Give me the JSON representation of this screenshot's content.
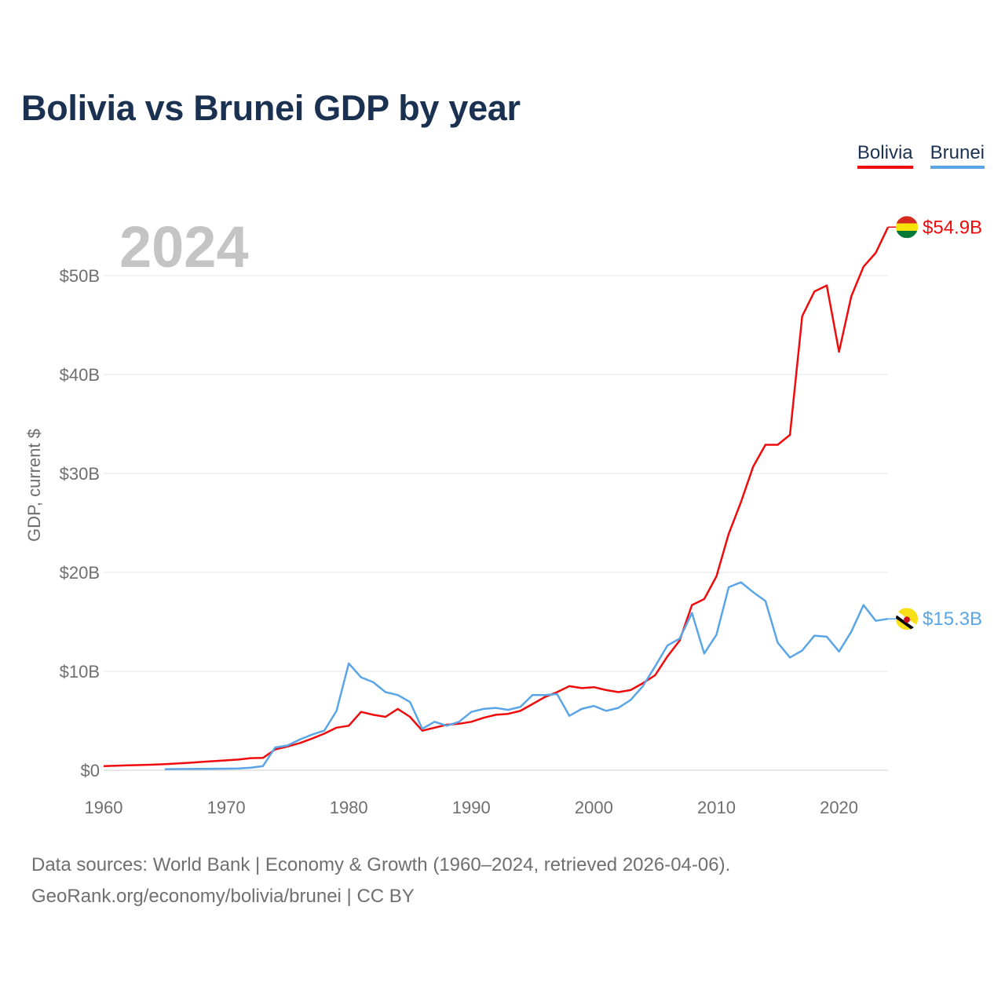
{
  "title": "Bolivia vs Brunei GDP by year",
  "legend": [
    {
      "label": "Bolivia",
      "color": "#ef0b0b"
    },
    {
      "label": "Brunei",
      "color": "#5aa5e6"
    }
  ],
  "footer": {
    "line1": "Data sources: World Bank | Economy & Growth (1960–2024, retrieved 2026-04-06).",
    "line2": "GeoRank.org/economy/bolivia/brunei | CC BY"
  },
  "chart_data": {
    "type": "line",
    "title": "Bolivia vs Brunei GDP by year",
    "year_label": "2024",
    "ylabel": "GDP, current $",
    "xlabel": "",
    "xlim": [
      1960,
      2024
    ],
    "ylim": [
      0,
      50
    ],
    "y_unit": "billions of current US$",
    "grid": true,
    "legend_position": "top-right",
    "x_ticks": [
      1960,
      1970,
      1980,
      1990,
      2000,
      2010,
      2020
    ],
    "x_tick_labels": [
      "1960",
      "1970",
      "1980",
      "1990",
      "2000",
      "2010",
      "2020"
    ],
    "y_ticks": [
      0,
      10,
      20,
      30,
      40,
      50
    ],
    "y_tick_labels": [
      "$0",
      "$10B",
      "$20B",
      "$30B",
      "$40B",
      "$50B"
    ],
    "series": [
      {
        "name": "Bolivia",
        "color": "#ef0b0b",
        "end_label": "$54.9B",
        "flag": "bolivia-flag",
        "x": [
          1960,
          1961,
          1962,
          1963,
          1964,
          1965,
          1966,
          1967,
          1968,
          1969,
          1970,
          1971,
          1972,
          1973,
          1974,
          1975,
          1976,
          1977,
          1978,
          1979,
          1980,
          1981,
          1982,
          1983,
          1984,
          1985,
          1986,
          1987,
          1988,
          1989,
          1990,
          1991,
          1992,
          1993,
          1994,
          1995,
          1996,
          1997,
          1998,
          1999,
          2000,
          2001,
          2002,
          2003,
          2004,
          2005,
          2006,
          2007,
          2008,
          2009,
          2010,
          2011,
          2012,
          2013,
          2014,
          2015,
          2016,
          2017,
          2018,
          2019,
          2020,
          2021,
          2022,
          2023,
          2024
        ],
        "values": [
          0.42,
          0.45,
          0.49,
          0.52,
          0.56,
          0.62,
          0.68,
          0.75,
          0.84,
          0.92,
          1.0,
          1.08,
          1.22,
          1.25,
          2.1,
          2.4,
          2.75,
          3.2,
          3.7,
          4.3,
          4.5,
          5.9,
          5.6,
          5.4,
          6.2,
          5.4,
          4.0,
          4.3,
          4.6,
          4.7,
          4.9,
          5.3,
          5.6,
          5.7,
          6.0,
          6.7,
          7.4,
          7.9,
          8.5,
          8.3,
          8.4,
          8.1,
          7.9,
          8.1,
          8.8,
          9.6,
          11.5,
          13.1,
          16.7,
          17.3,
          19.6,
          23.9,
          27.1,
          30.7,
          32.9,
          32.9,
          33.9,
          45.9,
          48.4,
          49.0,
          42.3,
          47.9,
          50.9,
          52.3,
          54.9
        ]
      },
      {
        "name": "Brunei",
        "color": "#5aa5e6",
        "end_label": "$15.3B",
        "flag": "brunei-flag",
        "x": [
          1965,
          1966,
          1967,
          1968,
          1969,
          1970,
          1971,
          1972,
          1973,
          1974,
          1975,
          1976,
          1977,
          1978,
          1979,
          1980,
          1981,
          1982,
          1983,
          1984,
          1985,
          1986,
          1987,
          1988,
          1989,
          1990,
          1991,
          1992,
          1993,
          1994,
          1995,
          1996,
          1997,
          1998,
          1999,
          2000,
          2001,
          2002,
          2003,
          2004,
          2005,
          2006,
          2007,
          2008,
          2009,
          2010,
          2011,
          2012,
          2013,
          2014,
          2015,
          2016,
          2017,
          2018,
          2019,
          2020,
          2021,
          2022,
          2023,
          2024
        ],
        "values": [
          0.11,
          0.12,
          0.13,
          0.14,
          0.15,
          0.16,
          0.18,
          0.26,
          0.42,
          2.3,
          2.5,
          3.1,
          3.6,
          4.0,
          6.0,
          10.8,
          9.4,
          8.9,
          7.9,
          7.6,
          6.9,
          4.2,
          4.9,
          4.5,
          4.9,
          5.9,
          6.2,
          6.3,
          6.1,
          6.4,
          7.6,
          7.6,
          7.7,
          5.5,
          6.2,
          6.5,
          6.0,
          6.3,
          7.1,
          8.5,
          10.5,
          12.6,
          13.3,
          15.9,
          11.8,
          13.7,
          18.5,
          19.0,
          18.0,
          17.1,
          12.9,
          11.4,
          12.1,
          13.6,
          13.5,
          12.0,
          14.0,
          16.7,
          15.1,
          15.3
        ]
      }
    ]
  }
}
